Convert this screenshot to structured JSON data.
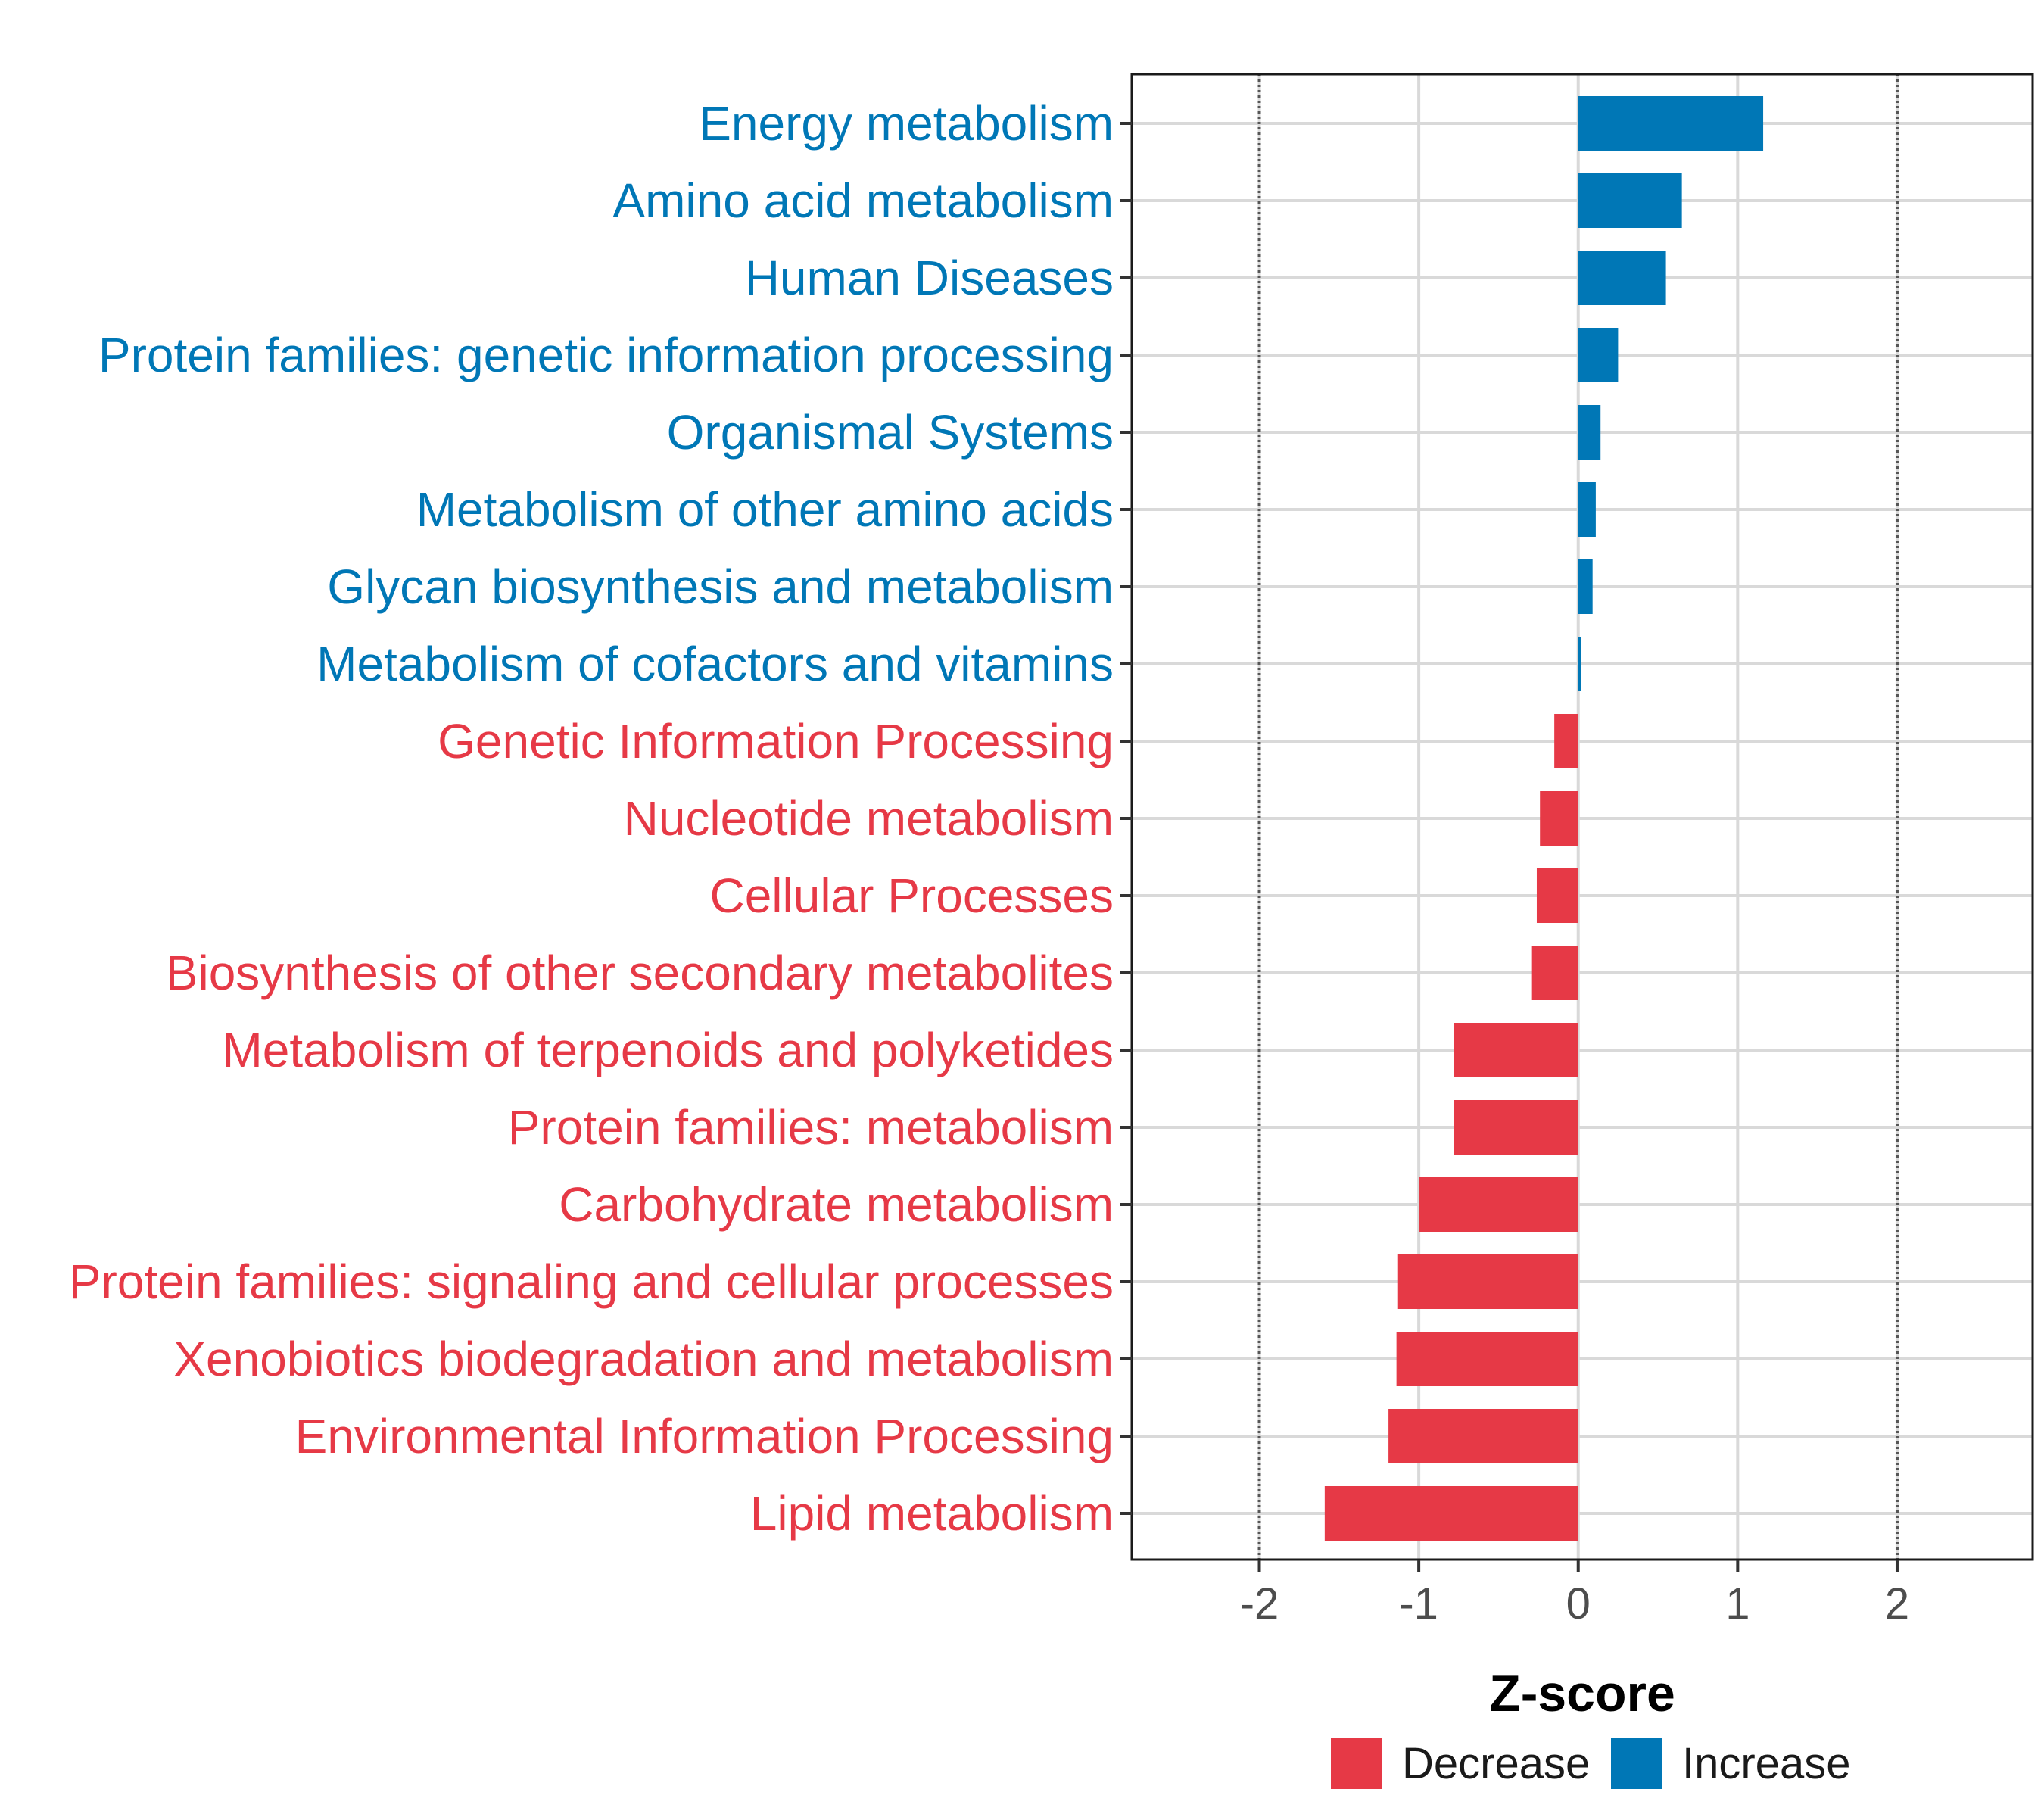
{
  "chart_data": {
    "type": "bar",
    "orientation": "horizontal",
    "title": "",
    "xlabel": "Z-score",
    "ylabel": "",
    "xlim": [
      -2.8,
      2.85
    ],
    "xticks": [
      -2,
      -1,
      0,
      1,
      2
    ],
    "xtick_labels": [
      "-2",
      "-1",
      "0",
      "1",
      "2"
    ],
    "reference_lines": [
      -2,
      2
    ],
    "grid": true,
    "legend_position": "bottom",
    "series": [
      {
        "name": "Decrease",
        "color": "#e63946"
      },
      {
        "name": "Increase",
        "color": "#0077b6"
      }
    ],
    "categories": [
      "Energy metabolism",
      "Amino acid metabolism",
      "Human Diseases",
      "Protein families: genetic information processing",
      "Organismal Systems",
      "Metabolism of other amino acids",
      "Glycan biosynthesis and metabolism",
      "Metabolism of cofactors and vitamins",
      "Genetic Information Processing",
      "Nucleotide metabolism",
      "Cellular Processes",
      "Biosynthesis of other secondary metabolites",
      "Metabolism of terpenoids and polyketides",
      "Protein families: metabolism",
      "Carbohydrate metabolism",
      "Protein families: signaling and cellular processes",
      "Xenobiotics biodegradation and metabolism",
      "Environmental Information Processing",
      "Lipid metabolism"
    ],
    "values": [
      1.16,
      0.65,
      0.55,
      0.25,
      0.14,
      0.11,
      0.09,
      0.02,
      -0.15,
      -0.24,
      -0.26,
      -0.29,
      -0.78,
      -0.78,
      -1.0,
      -1.13,
      -1.14,
      -1.19,
      -1.59
    ],
    "groups": [
      "Increase",
      "Increase",
      "Increase",
      "Increase",
      "Increase",
      "Increase",
      "Increase",
      "Increase",
      "Decrease",
      "Decrease",
      "Decrease",
      "Decrease",
      "Decrease",
      "Decrease",
      "Decrease",
      "Decrease",
      "Decrease",
      "Decrease",
      "Decrease"
    ]
  }
}
